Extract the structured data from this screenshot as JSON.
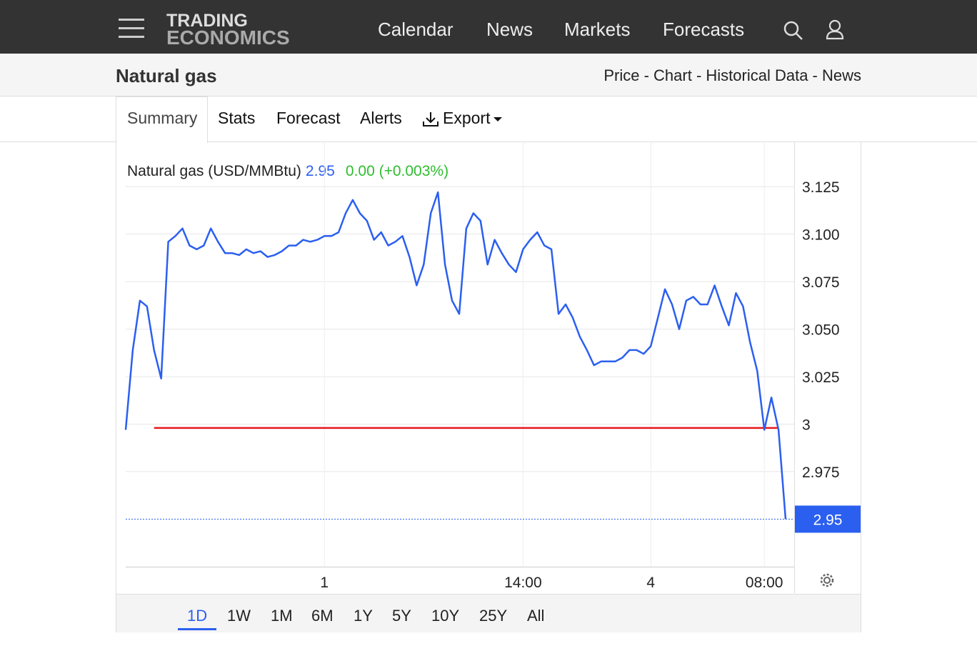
{
  "nav": {
    "logo": [
      "TRADING",
      "ECONOMICS"
    ],
    "links": [
      "Calendar",
      "News",
      "Markets",
      "Forecasts"
    ]
  },
  "header": {
    "title": "Natural gas",
    "links": "Price - Chart - Historical Data - News"
  },
  "tabs": [
    "Summary",
    "Stats",
    "Forecast",
    "Alerts",
    "Export"
  ],
  "ranges": [
    "1D",
    "1W",
    "1M",
    "6M",
    "1Y",
    "5Y",
    "10Y",
    "25Y",
    "All"
  ],
  "chart_data": {
    "type": "line",
    "title": "Natural gas (USD/MMBtu)",
    "last_value": 2.95,
    "change_label": "0.00 (+0.003%)",
    "categories": [
      null,
      null,
      null,
      null,
      null,
      null,
      null,
      null,
      null,
      null,
      null,
      null,
      null,
      null,
      null,
      null,
      null,
      null,
      null,
      null,
      null,
      null,
      null,
      null,
      null,
      null,
      null,
      null,
      "1",
      null,
      null,
      null,
      null,
      null,
      null,
      null,
      null,
      null,
      null,
      null,
      null,
      null,
      null,
      null,
      null,
      null,
      null,
      null,
      null,
      null,
      null,
      null,
      null,
      null,
      null,
      null,
      "14:00",
      null,
      null,
      null,
      null,
      null,
      null,
      null,
      null,
      null,
      null,
      null,
      null,
      null,
      null,
      null,
      null,
      null,
      "4",
      null,
      null,
      null,
      null,
      null,
      null,
      null,
      null,
      null,
      null,
      null,
      null,
      null,
      null,
      null,
      "08:00",
      null,
      null,
      null
    ],
    "series": [
      {
        "name": "Natural gas",
        "color": "#2b5ff0",
        "values": [
          2.997,
          3.039,
          3.065,
          3.062,
          3.039,
          3.024,
          3.096,
          3.099,
          3.103,
          3.094,
          3.092,
          3.094,
          3.103,
          3.096,
          3.09,
          3.09,
          3.089,
          3.092,
          3.09,
          3.091,
          3.088,
          3.089,
          3.091,
          3.094,
          3.094,
          3.097,
          3.096,
          3.097,
          3.099,
          3.099,
          3.101,
          3.111,
          3.118,
          3.111,
          3.107,
          3.097,
          3.101,
          3.094,
          3.096,
          3.099,
          3.088,
          3.073,
          3.084,
          3.111,
          3.122,
          3.084,
          3.065,
          3.058,
          3.103,
          3.111,
          3.107,
          3.084,
          3.097,
          3.09,
          3.084,
          3.08,
          3.092,
          3.097,
          3.101,
          3.094,
          3.092,
          3.058,
          3.063,
          3.056,
          3.046,
          3.039,
          3.031,
          3.033,
          3.033,
          3.033,
          3.035,
          3.039,
          3.039,
          3.037,
          3.041,
          3.056,
          3.071,
          3.063,
          3.05,
          3.065,
          3.067,
          3.063,
          3.063,
          3.073,
          3.062,
          3.052,
          3.069,
          3.062,
          3.043,
          3.028,
          2.997,
          3.014,
          2.997,
          2.95
        ]
      }
    ],
    "reference_line": {
      "value": 2.998,
      "color": "#e8161b"
    },
    "ylim": [
      2.925,
      3.148
    ],
    "yticks": [
      2.975,
      3,
      3.025,
      {
        "value": 3.05,
        "label": "3.050"
      },
      3.075,
      {
        "value": 3.1,
        "label": "3.100"
      },
      3.125
    ],
    "grid": true
  }
}
